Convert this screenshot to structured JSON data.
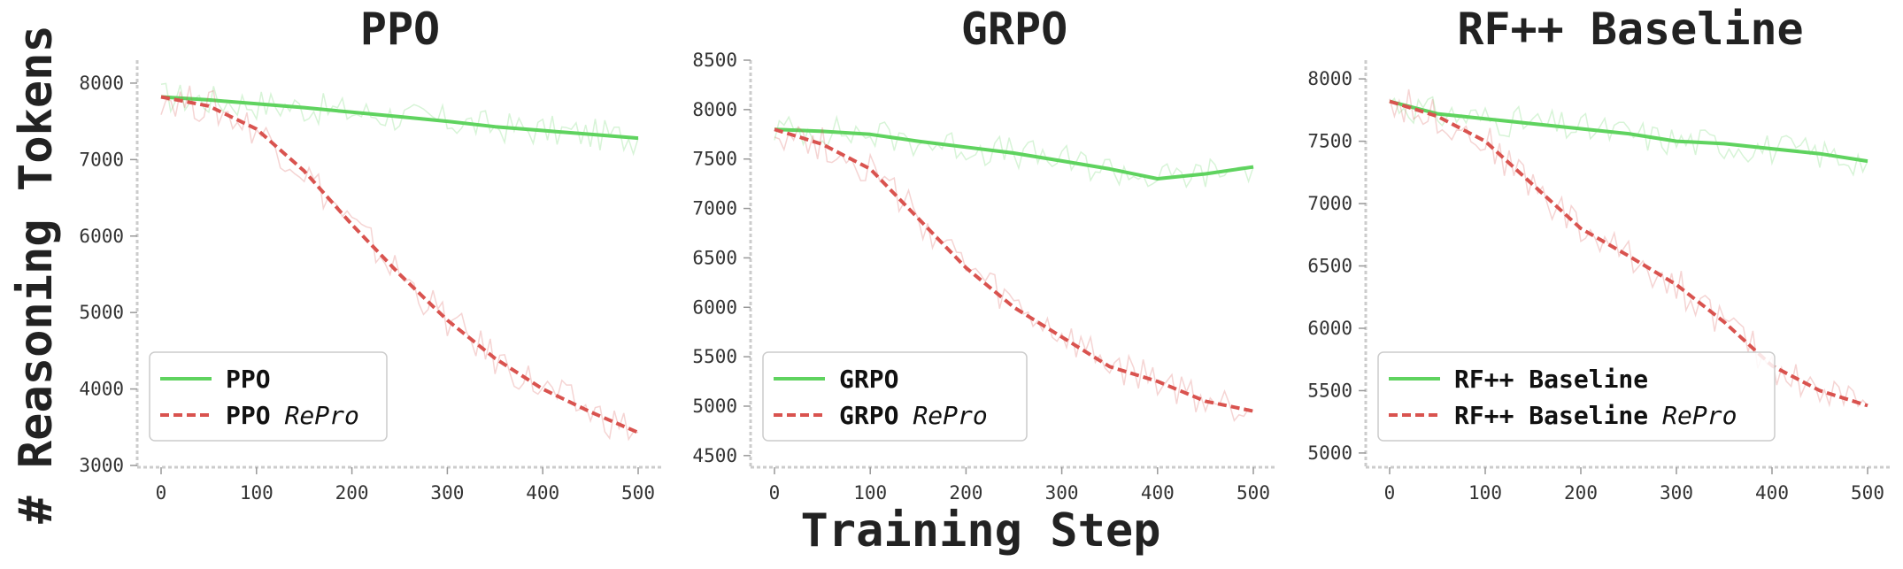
{
  "figure": {
    "ylabel": "# Reasoning Tokens",
    "xlabel": "Training Step"
  },
  "colors": {
    "baseline": "#5fd35f",
    "repro": "#d9534f"
  },
  "chart_data": [
    {
      "type": "line",
      "title": "PPO",
      "xlim": [
        0,
        500
      ],
      "ylim": [
        3000,
        8300
      ],
      "x_ticks": [
        0,
        100,
        200,
        300,
        400,
        500
      ],
      "y_ticks": [
        3000,
        4000,
        5000,
        6000,
        7000,
        8000
      ],
      "x": [
        0,
        50,
        100,
        150,
        200,
        250,
        300,
        350,
        400,
        450,
        500
      ],
      "series": [
        {
          "name": "PPO",
          "repro": false,
          "values": [
            7820,
            7780,
            7730,
            7680,
            7620,
            7560,
            7500,
            7430,
            7380,
            7330,
            7280
          ]
        },
        {
          "name": "PPO",
          "repro": true,
          "values": [
            7820,
            7700,
            7400,
            6850,
            6150,
            5500,
            4900,
            4400,
            4000,
            3700,
            3430
          ]
        }
      ]
    },
    {
      "type": "line",
      "title": "GRPO",
      "xlim": [
        0,
        500
      ],
      "ylim": [
        4400,
        8500
      ],
      "x_ticks": [
        0,
        100,
        200,
        300,
        400,
        500
      ],
      "y_ticks": [
        4500,
        5000,
        5500,
        6000,
        6500,
        7000,
        7500,
        8000,
        8500
      ],
      "x": [
        0,
        50,
        100,
        150,
        200,
        250,
        300,
        350,
        400,
        450,
        500
      ],
      "series": [
        {
          "name": "GRPO",
          "repro": false,
          "values": [
            7800,
            7780,
            7750,
            7680,
            7620,
            7560,
            7480,
            7400,
            7300,
            7350,
            7420
          ]
        },
        {
          "name": "GRPO",
          "repro": true,
          "values": [
            7800,
            7650,
            7400,
            6900,
            6400,
            6000,
            5700,
            5400,
            5250,
            5050,
            4950
          ]
        }
      ]
    },
    {
      "type": "line",
      "title": "RF++ Baseline",
      "xlim": [
        0,
        500
      ],
      "ylim": [
        4900,
        8150
      ],
      "x_ticks": [
        0,
        100,
        200,
        300,
        400,
        500
      ],
      "y_ticks": [
        5000,
        5500,
        6000,
        6500,
        7000,
        7500,
        8000
      ],
      "x": [
        0,
        50,
        100,
        150,
        200,
        250,
        300,
        350,
        400,
        450,
        500
      ],
      "series": [
        {
          "name": "RF++ Baseline",
          "repro": false,
          "values": [
            7820,
            7720,
            7680,
            7640,
            7600,
            7560,
            7500,
            7480,
            7440,
            7400,
            7340
          ]
        },
        {
          "name": "RF++ Baseline",
          "repro": true,
          "values": [
            7820,
            7700,
            7500,
            7150,
            6800,
            6580,
            6350,
            6050,
            5700,
            5500,
            5380
          ]
        }
      ]
    }
  ],
  "legend": {
    "entries": [
      [
        "PPO",
        "PPO",
        "RePro"
      ],
      [
        "GRPO",
        "GRPO",
        "RePro"
      ],
      [
        "RF++ Baseline",
        "RF++ Baseline",
        "RePro"
      ]
    ]
  }
}
